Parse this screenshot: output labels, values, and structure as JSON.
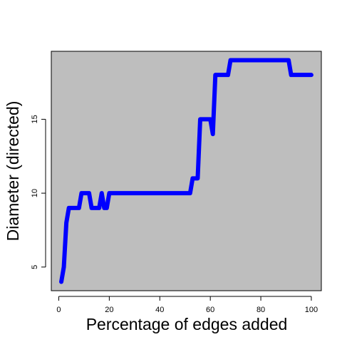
{
  "chart_data": {
    "type": "line",
    "xlabel": "Percentage of edges added",
    "ylabel": "Diameter (directed)",
    "x": [
      1,
      2,
      3,
      4,
      8,
      9,
      12,
      13,
      16,
      17,
      18,
      19,
      20,
      52,
      53,
      55,
      56,
      60,
      61,
      62,
      67,
      68,
      91,
      92,
      100
    ],
    "series": [
      {
        "color": "#0000ff",
        "values": [
          4,
          5,
          8,
          9,
          9,
          10,
          10,
          9,
          9,
          10,
          9,
          9,
          10,
          10,
          11,
          11,
          15,
          15,
          14,
          18,
          18,
          19,
          19,
          18,
          18
        ]
      }
    ],
    "xlim": [
      -2.96,
      103.96
    ],
    "ylim": [
      3.4,
      19.6
    ],
    "xticks": [
      0,
      20,
      40,
      60,
      80,
      100
    ],
    "yticks": [
      5,
      10,
      15
    ],
    "background": "#bebebe"
  }
}
